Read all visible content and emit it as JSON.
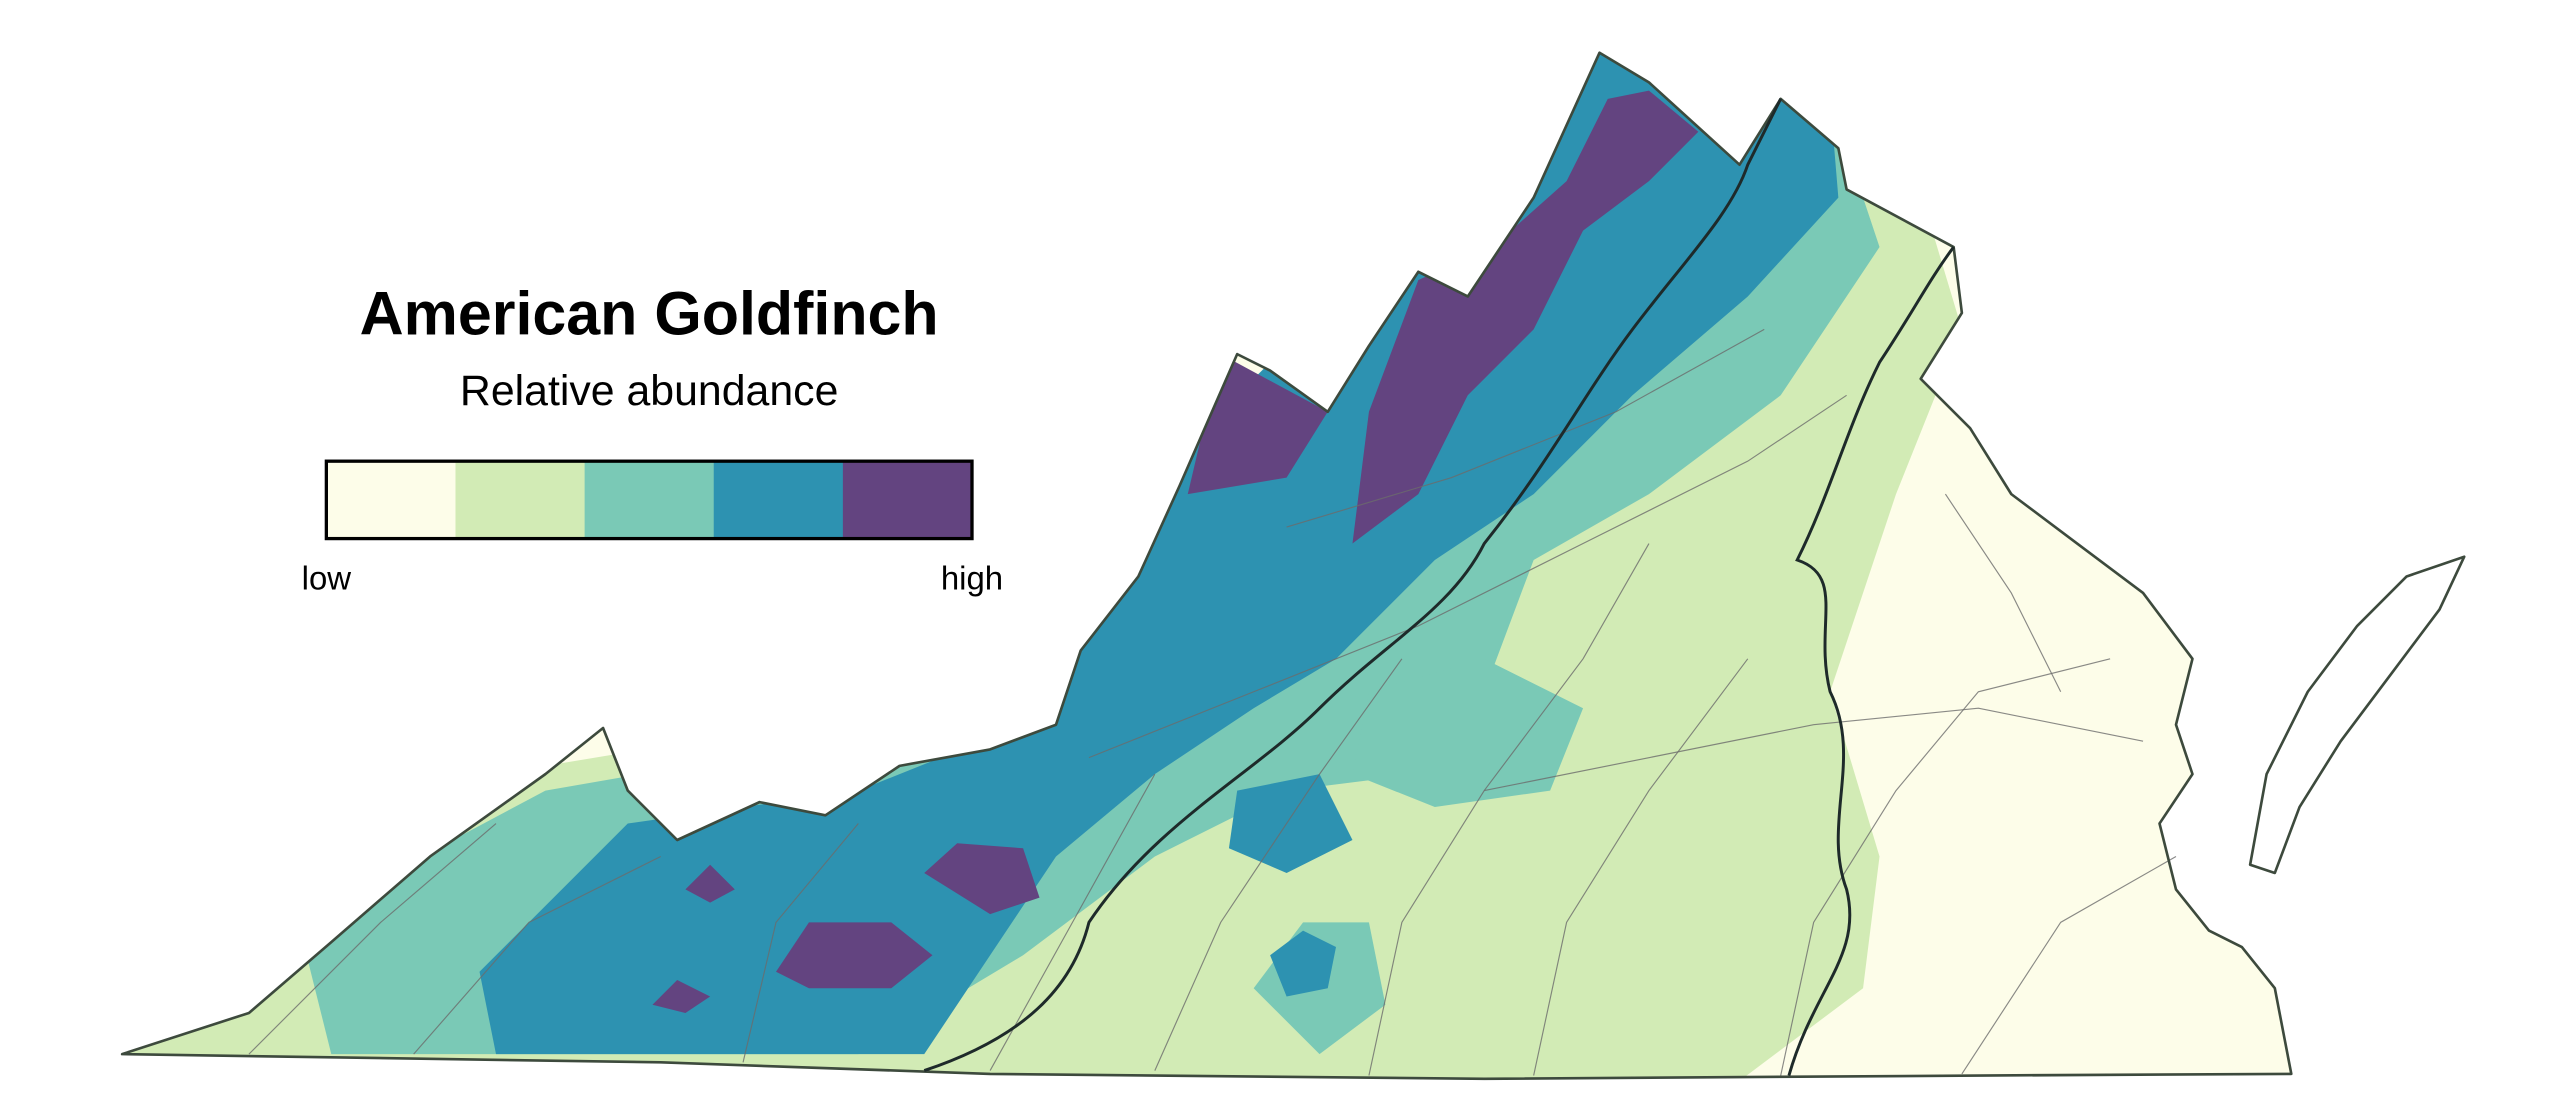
{
  "header": {
    "title": "American Goldfinch",
    "subtitle": "Relative abundance"
  },
  "legend": {
    "colors": [
      "#fdfde9",
      "#d2ebb5",
      "#7ac9b6",
      "#2d92b1",
      "#634480"
    ],
    "low_label": "low",
    "high_label": "high"
  }
}
